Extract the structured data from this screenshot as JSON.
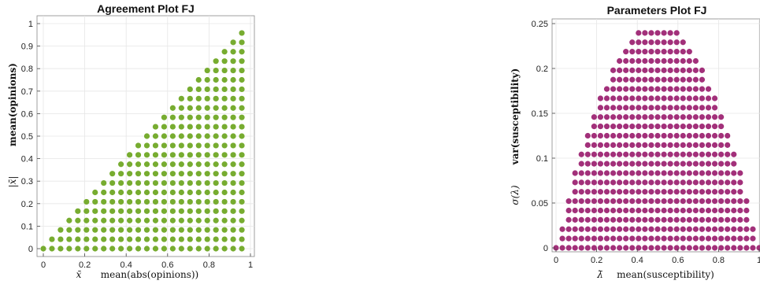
{
  "chart_data": [
    {
      "type": "scatter",
      "title": "Agreement Plot FJ",
      "xlabel_symbol": "x̄",
      "xlabel": "mean(abs(opinions))",
      "ylabel_symbol": "|x̄|",
      "ylabel": "mean(opinions)",
      "xlim": [
        0,
        1
      ],
      "ylim": [
        0,
        1
      ],
      "xticks": [
        "0",
        "0.2",
        "0.4",
        "0.6",
        "0.8",
        "1"
      ],
      "yticks": [
        "0",
        "0.1",
        "0.2",
        "0.3",
        "0.4",
        "0.5",
        "0.6",
        "0.7",
        "0.8",
        "0.9",
        "1"
      ],
      "grid": true,
      "color": "#77ac30",
      "series_description": "points (x, y) on a grid with x step 1/24 and y step 1/24 where 0 <= y <= x <= 1",
      "x_step": 0.041667,
      "y_step": 0.041667
    },
    {
      "type": "scatter",
      "title": "Parameters Plot FJ",
      "xlabel_symbol": "λ̄",
      "xlabel": "mean(susceptibility)",
      "ylabel_symbol": "σ(λ)",
      "ylabel": "var(susceptibility)",
      "xlim": [
        0,
        1
      ],
      "ylim": [
        0,
        0.25
      ],
      "xticks": [
        "0",
        "0.2",
        "0.4",
        "0.6",
        "0.8",
        "1"
      ],
      "yticks": [
        "0",
        "0.05",
        "0.1",
        "0.15",
        "0.2",
        "0.25"
      ],
      "grid": true,
      "color": "#a2307a",
      "series_description": "points (x, y) on a grid with x step 1/32 and y step 1/96 where 0 <= y <= x(1-x)",
      "x_step": 0.03125,
      "y_step": 0.0104167
    }
  ]
}
